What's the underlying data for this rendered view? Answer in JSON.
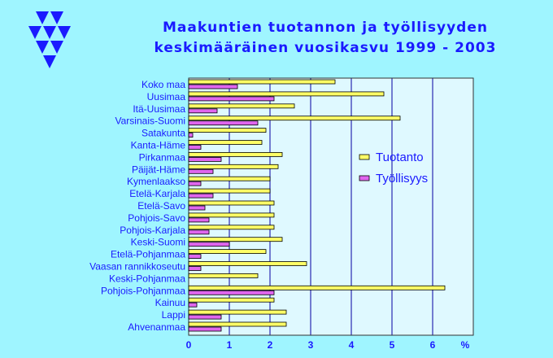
{
  "title_line1": "Maakuntien tuotannon ja työllisyyden",
  "title_line2": "keskimääräinen vuosikasvu 1999 - 2003",
  "chart_data": {
    "type": "bar",
    "orientation": "horizontal",
    "categories": [
      "Koko maa",
      "Uusimaa",
      "Itä-Uusimaa",
      "Varsinais-Suomi",
      "Satakunta",
      "Kanta-Häme",
      "Pirkanmaa",
      "Päijät-Häme",
      "Kymenlaakso",
      "Etelä-Karjala",
      "Etelä-Savo",
      "Pohjois-Savo",
      "Pohjois-Karjala",
      "Keski-Suomi",
      "Etelä-Pohjanmaa",
      "Vaasan rannikkoseutu",
      "Keski-Pohjanmaa",
      "Pohjois-Pohjanmaa",
      "Kainuu",
      "Lappi",
      "Ahvenanmaa"
    ],
    "series": [
      {
        "name": "Tuotanto",
        "color": "#ffff66",
        "values": [
          3.6,
          4.8,
          2.6,
          5.2,
          1.9,
          1.8,
          2.3,
          2.2,
          2.0,
          2.0,
          2.1,
          2.1,
          2.1,
          2.3,
          1.9,
          2.9,
          1.7,
          6.3,
          2.1,
          2.4,
          2.4
        ]
      },
      {
        "name": "Työllisyys",
        "color": "#e066ee",
        "values": [
          1.2,
          2.1,
          0.7,
          1.7,
          0.1,
          0.3,
          0.8,
          0.6,
          0.3,
          0.6,
          0.4,
          0.5,
          0.5,
          1.0,
          0.3,
          0.3,
          0.0,
          2.1,
          0.2,
          0.8,
          0.8
        ]
      }
    ],
    "xlim": [
      0,
      7
    ],
    "xticks": [
      "0",
      "1",
      "2",
      "3",
      "4",
      "5",
      "6"
    ],
    "xunit": "%",
    "legend_position": "right",
    "grid": true
  }
}
